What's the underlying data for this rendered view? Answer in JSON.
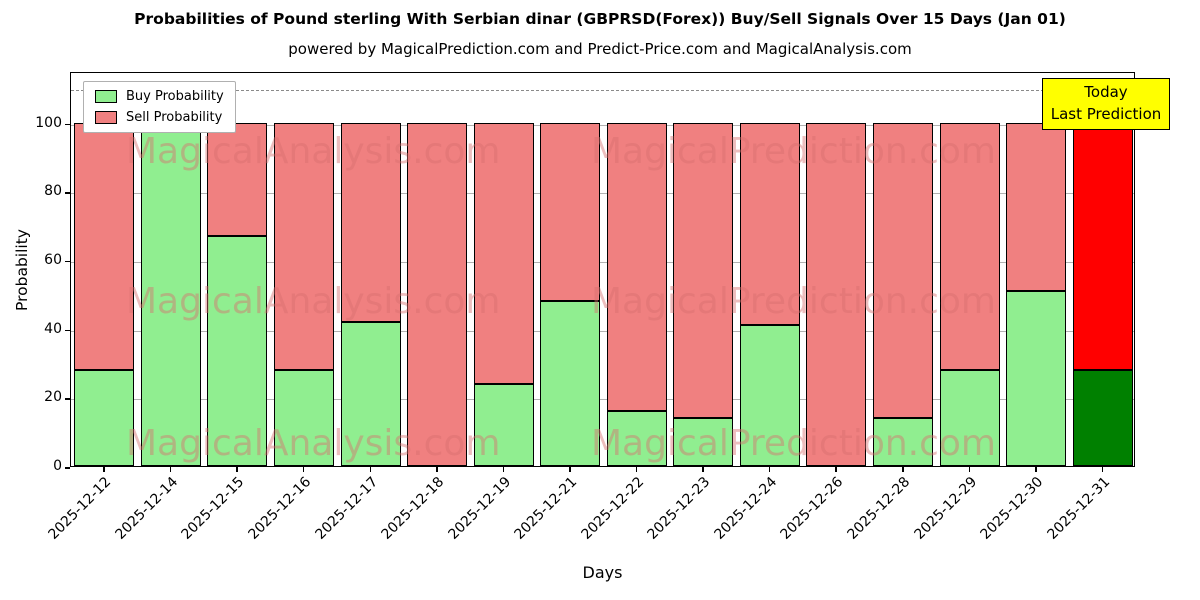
{
  "header": {
    "title": "Probabilities of Pound sterling With Serbian dinar (GBPRSD(Forex)) Buy/Sell Signals Over 15 Days (Jan 01)",
    "subtitle": "powered by MagicalPrediction.com and Predict-Price.com and MagicalAnalysis.com"
  },
  "annotation_box": {
    "line1": "Today",
    "line2": "Last Prediction",
    "bg_color": "#ffff00"
  },
  "watermarks": [
    "MagicalAnalysis.com",
    "MagicalPrediction.com"
  ],
  "chart_data": {
    "type": "bar",
    "stacked": true,
    "title": "Probabilities of Pound sterling With Serbian dinar (GBPRSD(Forex)) Buy/Sell Signals Over 15 Days (Jan 01)",
    "subtitle": "powered by MagicalPrediction.com and Predict-Price.com and MagicalAnalysis.com",
    "xlabel": "Days",
    "ylabel": "Probability",
    "ylim": [
      0,
      115
    ],
    "yticks": [
      0,
      20,
      40,
      60,
      80,
      100
    ],
    "dashed_line_y": 110,
    "grid": "horizontal",
    "legend_position": "top-left",
    "categories": [
      "2025-12-12",
      "2025-12-14",
      "2025-12-15",
      "2025-12-16",
      "2025-12-17",
      "2025-12-18",
      "2025-12-19",
      "2025-12-21",
      "2025-12-22",
      "2025-12-23",
      "2025-12-24",
      "2025-12-26",
      "2025-12-28",
      "2025-12-29",
      "2025-12-30",
      "2025-12-31"
    ],
    "series": [
      {
        "name": "Buy Probability",
        "color": "#90ee90",
        "values": [
          28,
          100,
          67,
          28,
          42,
          0,
          24,
          48,
          16,
          14,
          41,
          0,
          14,
          28,
          51,
          28
        ]
      },
      {
        "name": "Sell Probability",
        "color": "#f08080",
        "values": [
          72,
          0,
          33,
          72,
          58,
          100,
          76,
          52,
          84,
          86,
          59,
          100,
          86,
          72,
          49,
          72
        ]
      }
    ],
    "today_index": 15,
    "today_colors": {
      "buy": "#008000",
      "sell": "#ff0000"
    }
  }
}
